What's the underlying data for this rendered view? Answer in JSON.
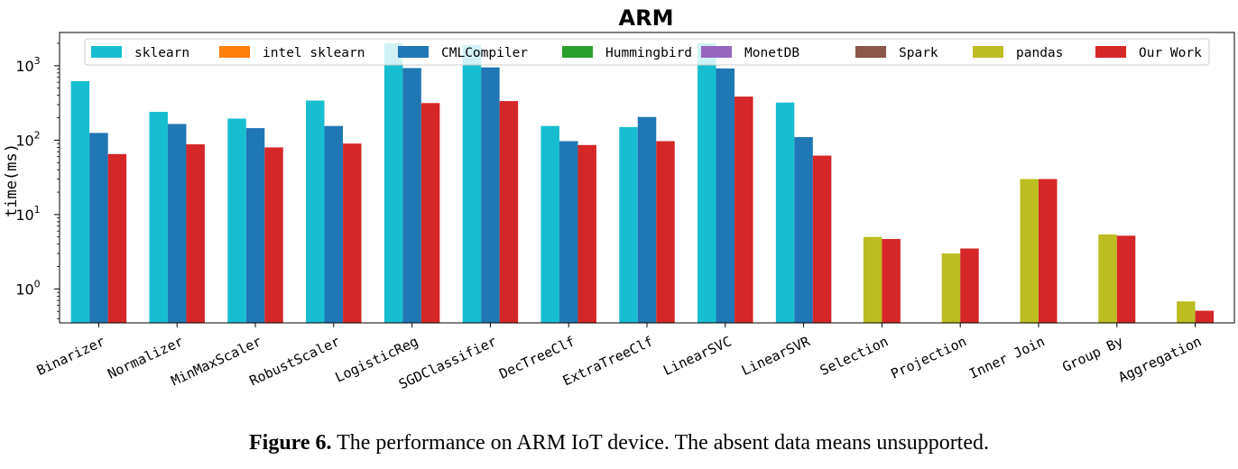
{
  "caption": {
    "label": "Figure 6.",
    "text": "The performance on ARM IoT device. The absent data means unsupported."
  },
  "chart_data": {
    "type": "bar",
    "title": "ARM",
    "ylabel": "time(ms)",
    "xlabel": "",
    "yscale": "log",
    "ylim": [
      0.35,
      2800
    ],
    "yticks": [
      {
        "value": 1,
        "base": "10",
        "exp": "0"
      },
      {
        "value": 10,
        "base": "10",
        "exp": "1"
      },
      {
        "value": 100,
        "base": "10",
        "exp": "2"
      },
      {
        "value": 1000,
        "base": "10",
        "exp": "3"
      }
    ],
    "legend_position": "top",
    "grid": false,
    "categories": [
      "Binarizer",
      "Normalizer",
      "MinMaxScaler",
      "RobustScaler",
      "LogisticReg",
      "SGDClassifier",
      "DecTreeClf",
      "ExtraTreeClf",
      "LinearSVC",
      "LinearSVR",
      "Selection",
      "Projection",
      "Inner Join",
      "Group By",
      "Aggregation"
    ],
    "series": [
      {
        "name": "sklearn",
        "color": "#17becf",
        "values": [
          620,
          240,
          195,
          340,
          2000,
          1900,
          155,
          150,
          2000,
          320,
          null,
          null,
          null,
          null,
          null
        ]
      },
      {
        "name": "intel sklearn",
        "color": "#ff7f0e",
        "values": [
          null,
          null,
          null,
          null,
          null,
          null,
          null,
          null,
          null,
          null,
          null,
          null,
          null,
          null,
          null
        ]
      },
      {
        "name": "CMLCompiler",
        "color": "#1f77b4",
        "values": [
          125,
          165,
          145,
          155,
          930,
          950,
          97,
          205,
          920,
          110,
          null,
          null,
          null,
          null,
          null
        ]
      },
      {
        "name": "Hummingbird",
        "color": "#2ca02c",
        "values": [
          null,
          null,
          null,
          null,
          null,
          null,
          null,
          null,
          null,
          null,
          null,
          null,
          null,
          null,
          null
        ]
      },
      {
        "name": "MonetDB",
        "color": "#9467bd",
        "values": [
          null,
          null,
          null,
          null,
          null,
          null,
          null,
          null,
          null,
          null,
          null,
          null,
          null,
          null,
          null
        ]
      },
      {
        "name": "Spark",
        "color": "#8c564b",
        "values": [
          null,
          null,
          null,
          null,
          null,
          null,
          null,
          null,
          null,
          null,
          null,
          null,
          null,
          null,
          null
        ]
      },
      {
        "name": "pandas",
        "color": "#bcbd22",
        "values": [
          null,
          null,
          null,
          null,
          null,
          null,
          null,
          null,
          null,
          null,
          5.0,
          3.0,
          30,
          5.4,
          0.68
        ]
      },
      {
        "name": "Our Work",
        "color": "#d62728",
        "values": [
          65,
          88,
          80,
          90,
          315,
          335,
          86,
          97,
          385,
          62,
          4.7,
          3.5,
          30,
          5.2,
          0.51
        ]
      }
    ]
  }
}
